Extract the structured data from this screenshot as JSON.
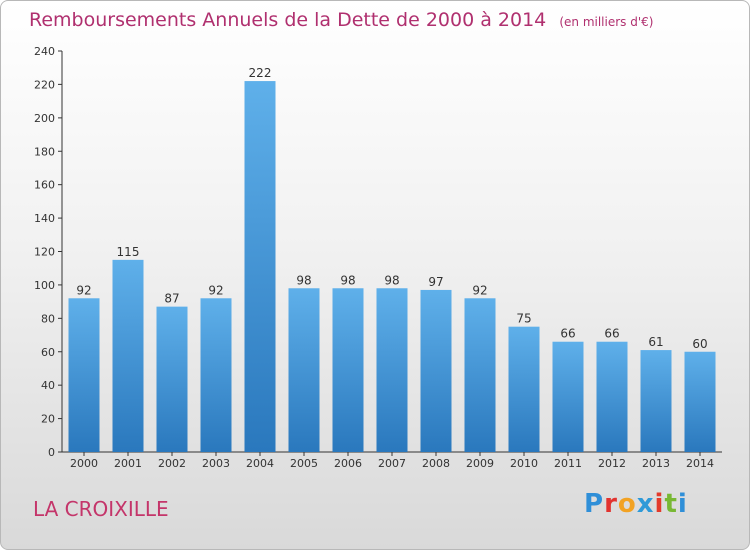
{
  "header": {
    "title": "Remboursements Annuels de la Dette de 2000 à 2014",
    "unit": "(en milliers d'€)"
  },
  "footer": {
    "commune": "LA CROIXILLE",
    "logo_text": "Proxiti"
  },
  "colors": {
    "title": "#b0306f",
    "bar_light": "#5fb0ea",
    "bar_dark": "#2a78bd",
    "logo_letters": [
      "#2f8fd8",
      "#e2332f",
      "#f2a223",
      "#2e9ad8",
      "#e33a2b",
      "#78b833",
      "#2f8fd8"
    ]
  },
  "chart_data": {
    "type": "bar",
    "title": "Remboursements Annuels de la Dette de 2000 à 2014",
    "xlabel": "",
    "ylabel": "",
    "categories": [
      "2000",
      "2001",
      "2002",
      "2003",
      "2004",
      "2005",
      "2006",
      "2007",
      "2008",
      "2009",
      "2010",
      "2011",
      "2012",
      "2013",
      "2014"
    ],
    "values": [
      92,
      115,
      87,
      92,
      222,
      98,
      98,
      98,
      97,
      92,
      75,
      66,
      66,
      61,
      60
    ],
    "ylim": [
      0,
      240
    ],
    "yticks": [
      0,
      20,
      40,
      60,
      80,
      100,
      120,
      140,
      160,
      180,
      200,
      220,
      240
    ],
    "grid": false,
    "data_labels": true
  }
}
